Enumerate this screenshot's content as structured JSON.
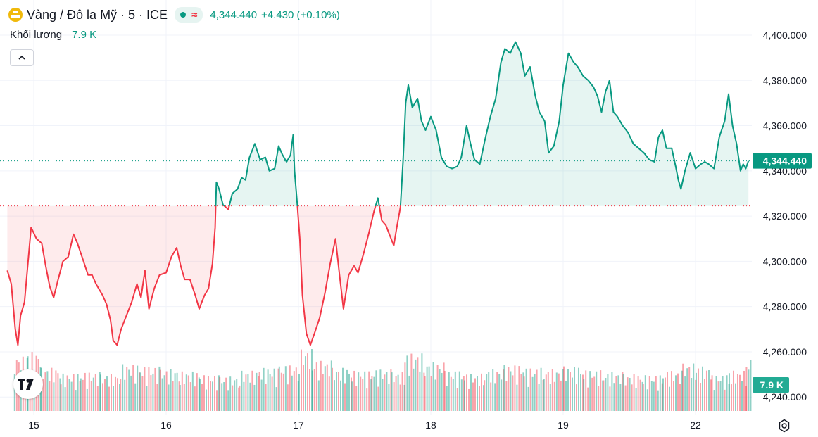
{
  "header": {
    "symbol": "Vàng / Đô la Mỹ · 5 · ICE",
    "last": "4,344.440",
    "change": "+4.430 (+0.10%)",
    "volume_label": "Khối lượng",
    "volume_value": "7.9 K"
  },
  "icons": [
    "gold-logo-icon",
    "market-status-dot-icon",
    "wave-icon",
    "chevron-up-icon",
    "tradingview-logo-icon",
    "settings-gear-icon"
  ],
  "colors": {
    "up": "#089981",
    "down": "#f23645",
    "grid": "#f0f3fa",
    "text": "#131722"
  },
  "chart_data": {
    "type": "line",
    "title": "Vàng / Đô la Mỹ · 5 · ICE",
    "ylim": [
      4230,
      4410
    ],
    "y_ticks": [
      4240,
      4260,
      4280,
      4300,
      4320,
      4340,
      4360,
      4380,
      4400
    ],
    "y_tick_labels": [
      "4,240.000",
      "4,260.000",
      "4,280.000",
      "4,300.000",
      "4,320.000",
      "4,340.000",
      "4,360.000",
      "4,380.000",
      "4,400.000"
    ],
    "x_tick_labels": [
      "15",
      "16",
      "17",
      "18",
      "19",
      "22"
    ],
    "x_tick_pos": [
      0,
      1,
      2,
      3,
      4,
      5
    ],
    "baseline": 4324.5,
    "last_value": 4344.44,
    "last_label": "4,344.440",
    "volume_label": "7.9 K",
    "grid": true,
    "series": [
      {
        "points": [
          [
            -0.2,
            4296
          ],
          [
            -0.17,
            4290
          ],
          [
            -0.14,
            4270
          ],
          [
            -0.12,
            4263
          ],
          [
            -0.1,
            4276
          ],
          [
            -0.07,
            4282
          ],
          [
            -0.04,
            4302
          ],
          [
            -0.02,
            4315
          ],
          [
            0.02,
            4310
          ],
          [
            0.06,
            4308
          ],
          [
            0.09,
            4298
          ],
          [
            0.12,
            4289
          ],
          [
            0.15,
            4284
          ],
          [
            0.18,
            4291
          ],
          [
            0.22,
            4300
          ],
          [
            0.26,
            4302
          ],
          [
            0.3,
            4312
          ],
          [
            0.33,
            4308
          ],
          [
            0.37,
            4301
          ],
          [
            0.41,
            4294
          ],
          [
            0.44,
            4294
          ],
          [
            0.47,
            4290
          ],
          [
            0.52,
            4285
          ],
          [
            0.55,
            4281
          ],
          [
            0.58,
            4274
          ],
          [
            0.6,
            4265
          ],
          [
            0.63,
            4263
          ],
          [
            0.66,
            4270
          ],
          [
            0.7,
            4276
          ],
          [
            0.74,
            4282
          ],
          [
            0.78,
            4290
          ],
          [
            0.81,
            4284
          ],
          [
            0.84,
            4296
          ],
          [
            0.87,
            4279
          ],
          [
            0.91,
            4288
          ],
          [
            0.95,
            4294
          ],
          [
            1.0,
            4295
          ],
          [
            1.04,
            4302
          ],
          [
            1.08,
            4306
          ],
          [
            1.11,
            4298
          ],
          [
            1.14,
            4292
          ],
          [
            1.18,
            4292
          ],
          [
            1.22,
            4285
          ],
          [
            1.25,
            4279
          ],
          [
            1.29,
            4285
          ],
          [
            1.32,
            4288
          ],
          [
            1.35,
            4299
          ],
          [
            1.37,
            4315
          ],
          [
            1.38,
            4335
          ],
          [
            1.4,
            4332
          ],
          [
            1.43,
            4325
          ],
          [
            1.47,
            4323
          ],
          [
            1.5,
            4330
          ],
          [
            1.54,
            4332
          ],
          [
            1.57,
            4337
          ],
          [
            1.6,
            4336
          ],
          [
            1.63,
            4346
          ],
          [
            1.67,
            4352
          ],
          [
            1.71,
            4345
          ],
          [
            1.75,
            4346
          ],
          [
            1.78,
            4340
          ],
          [
            1.82,
            4341
          ],
          [
            1.85,
            4351
          ],
          [
            1.88,
            4347
          ],
          [
            1.91,
            4344
          ],
          [
            1.94,
            4347
          ],
          [
            1.96,
            4356
          ],
          [
            1.97,
            4340
          ],
          [
            1.99,
            4326
          ],
          [
            2.01,
            4310
          ],
          [
            2.03,
            4285
          ],
          [
            2.06,
            4268
          ],
          [
            2.09,
            4263
          ],
          [
            2.12,
            4268
          ],
          [
            2.16,
            4275
          ],
          [
            2.2,
            4286
          ],
          [
            2.24,
            4299
          ],
          [
            2.28,
            4310
          ],
          [
            2.31,
            4294
          ],
          [
            2.34,
            4279
          ],
          [
            2.38,
            4294
          ],
          [
            2.42,
            4298
          ],
          [
            2.45,
            4295
          ],
          [
            2.49,
            4303
          ],
          [
            2.53,
            4312
          ],
          [
            2.57,
            4322
          ],
          [
            2.6,
            4328
          ],
          [
            2.63,
            4318
          ],
          [
            2.66,
            4316
          ],
          [
            2.7,
            4310
          ],
          [
            2.72,
            4307
          ],
          [
            2.74,
            4314
          ],
          [
            2.77,
            4324
          ],
          [
            2.79,
            4344
          ],
          [
            2.81,
            4370
          ],
          [
            2.83,
            4378
          ],
          [
            2.86,
            4368
          ],
          [
            2.9,
            4372
          ],
          [
            2.93,
            4362
          ],
          [
            2.96,
            4358
          ],
          [
            3.0,
            4364
          ],
          [
            3.04,
            4358
          ],
          [
            3.08,
            4346
          ],
          [
            3.12,
            4342
          ],
          [
            3.16,
            4341
          ],
          [
            3.2,
            4342
          ],
          [
            3.23,
            4346
          ],
          [
            3.27,
            4360
          ],
          [
            3.3,
            4352
          ],
          [
            3.33,
            4345
          ],
          [
            3.37,
            4343
          ],
          [
            3.41,
            4354
          ],
          [
            3.45,
            4364
          ],
          [
            3.49,
            4372
          ],
          [
            3.53,
            4388
          ],
          [
            3.56,
            4394
          ],
          [
            3.6,
            4392
          ],
          [
            3.64,
            4397
          ],
          [
            3.68,
            4392
          ],
          [
            3.71,
            4382
          ],
          [
            3.75,
            4386
          ],
          [
            3.79,
            4373
          ],
          [
            3.82,
            4366
          ],
          [
            3.86,
            4362
          ],
          [
            3.89,
            4348
          ],
          [
            3.93,
            4351
          ],
          [
            3.97,
            4362
          ],
          [
            4.0,
            4378
          ],
          [
            4.04,
            4392
          ],
          [
            4.08,
            4388
          ],
          [
            4.11,
            4386
          ],
          [
            4.15,
            4382
          ],
          [
            4.19,
            4380
          ],
          [
            4.23,
            4377
          ],
          [
            4.26,
            4373
          ],
          [
            4.29,
            4366
          ],
          [
            4.32,
            4375
          ],
          [
            4.35,
            4380
          ],
          [
            4.38,
            4366
          ],
          [
            4.41,
            4364
          ],
          [
            4.45,
            4360
          ],
          [
            4.49,
            4357
          ],
          [
            4.53,
            4352
          ],
          [
            4.57,
            4350
          ],
          [
            4.61,
            4348
          ],
          [
            4.65,
            4345
          ],
          [
            4.69,
            4344
          ],
          [
            4.72,
            4355
          ],
          [
            4.75,
            4358
          ],
          [
            4.78,
            4350
          ],
          [
            4.82,
            4350
          ],
          [
            4.85,
            4342
          ],
          [
            4.87,
            4336
          ],
          [
            4.89,
            4332
          ],
          [
            4.92,
            4340
          ],
          [
            4.96,
            4348
          ],
          [
            5.0,
            4341
          ],
          [
            5.04,
            4343
          ],
          [
            5.07,
            4344
          ],
          [
            5.1,
            4343
          ],
          [
            5.14,
            4341
          ],
          [
            5.18,
            4355
          ],
          [
            5.22,
            4362
          ],
          [
            5.25,
            4374
          ],
          [
            5.28,
            4360
          ],
          [
            5.31,
            4352
          ],
          [
            5.34,
            4340
          ],
          [
            5.36,
            4343
          ],
          [
            5.38,
            4341
          ],
          [
            5.4,
            4344.44
          ]
        ]
      }
    ],
    "volume": {
      "max": 8800,
      "bars": [
        [
          -0.15,
          7600,
          "down"
        ],
        [
          -0.05,
          8200,
          "down"
        ],
        [
          0.05,
          6000,
          "down"
        ],
        [
          0.2,
          5200,
          "up"
        ],
        [
          0.35,
          5400,
          "down"
        ],
        [
          0.5,
          5100,
          "down"
        ],
        [
          0.65,
          6500,
          "up"
        ],
        [
          0.8,
          6200,
          "down"
        ],
        [
          0.95,
          5800,
          "up"
        ],
        [
          1.1,
          5500,
          "down"
        ],
        [
          1.25,
          5000,
          "down"
        ],
        [
          1.4,
          4800,
          "up"
        ],
        [
          1.55,
          5600,
          "up"
        ],
        [
          1.7,
          6000,
          "up"
        ],
        [
          1.85,
          6400,
          "down"
        ],
        [
          2.0,
          8600,
          "down"
        ],
        [
          2.1,
          7000,
          "down"
        ],
        [
          2.25,
          6000,
          "up"
        ],
        [
          2.4,
          5600,
          "down"
        ],
        [
          2.55,
          5800,
          "up"
        ],
        [
          2.7,
          5400,
          "down"
        ],
        [
          2.8,
          8000,
          "up"
        ],
        [
          2.95,
          6800,
          "up"
        ],
        [
          3.1,
          5600,
          "up"
        ],
        [
          3.25,
          5200,
          "down"
        ],
        [
          3.4,
          5800,
          "up"
        ],
        [
          3.55,
          6400,
          "down"
        ],
        [
          3.7,
          6000,
          "up"
        ],
        [
          3.85,
          5800,
          "down"
        ],
        [
          4.0,
          6200,
          "up"
        ],
        [
          4.15,
          5700,
          "down"
        ],
        [
          4.3,
          5400,
          "up"
        ],
        [
          4.45,
          5100,
          "down"
        ],
        [
          4.6,
          5000,
          "up"
        ],
        [
          4.75,
          5600,
          "down"
        ],
        [
          4.9,
          6600,
          "up"
        ],
        [
          5.0,
          6200,
          "down"
        ],
        [
          5.12,
          5000,
          "up"
        ],
        [
          5.25,
          5600,
          "down"
        ],
        [
          5.38,
          7200,
          "up"
        ]
      ]
    }
  }
}
